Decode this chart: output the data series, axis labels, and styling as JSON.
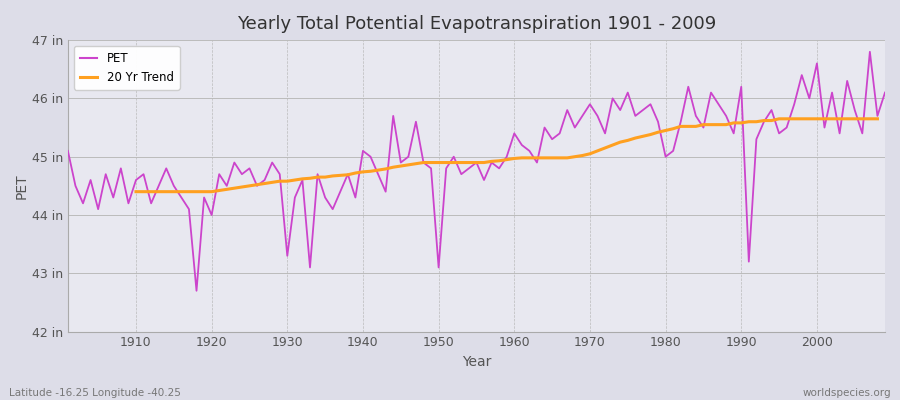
{
  "title": "Yearly Total Potential Evapotranspiration 1901 - 2009",
  "xlabel": "Year",
  "ylabel": "PET",
  "subtitle_left": "Latitude -16.25 Longitude -40.25",
  "subtitle_right": "worldspecies.org",
  "ylim": [
    42,
    47
  ],
  "yticks": [
    42,
    43,
    44,
    45,
    46,
    47
  ],
  "ytick_labels": [
    "42 in",
    "43 in",
    "44 in",
    "45 in",
    "46 in",
    "47 in"
  ],
  "pet_color": "#CC44CC",
  "trend_color": "#FFA020",
  "fig_bg_color": "#DDDDE8",
  "plot_bg_color": "#E8E8F0",
  "years": [
    1901,
    1902,
    1903,
    1904,
    1905,
    1906,
    1907,
    1908,
    1909,
    1910,
    1911,
    1912,
    1913,
    1914,
    1915,
    1916,
    1917,
    1918,
    1919,
    1920,
    1921,
    1922,
    1923,
    1924,
    1925,
    1926,
    1927,
    1928,
    1929,
    1930,
    1931,
    1932,
    1933,
    1934,
    1935,
    1936,
    1937,
    1938,
    1939,
    1940,
    1941,
    1942,
    1943,
    1944,
    1945,
    1946,
    1947,
    1948,
    1949,
    1950,
    1951,
    1952,
    1953,
    1954,
    1955,
    1956,
    1957,
    1958,
    1959,
    1960,
    1961,
    1962,
    1963,
    1964,
    1965,
    1966,
    1967,
    1968,
    1969,
    1970,
    1971,
    1972,
    1973,
    1974,
    1975,
    1976,
    1977,
    1978,
    1979,
    1980,
    1981,
    1982,
    1983,
    1984,
    1985,
    1986,
    1987,
    1988,
    1989,
    1990,
    1991,
    1992,
    1993,
    1994,
    1995,
    1996,
    1997,
    1998,
    1999,
    2000,
    2001,
    2002,
    2003,
    2004,
    2005,
    2006,
    2007,
    2008,
    2009
  ],
  "pet_values": [
    45.1,
    44.5,
    44.2,
    44.6,
    44.1,
    44.7,
    44.3,
    44.8,
    44.2,
    44.6,
    44.7,
    44.2,
    44.5,
    44.8,
    44.5,
    44.3,
    44.1,
    42.7,
    44.3,
    44.0,
    44.7,
    44.5,
    44.9,
    44.7,
    44.8,
    44.5,
    44.6,
    44.9,
    44.7,
    43.3,
    44.3,
    44.6,
    43.1,
    44.7,
    44.3,
    44.1,
    44.4,
    44.7,
    44.3,
    45.1,
    45.0,
    44.7,
    44.4,
    45.7,
    44.9,
    45.0,
    45.6,
    44.9,
    44.8,
    43.1,
    44.8,
    45.0,
    44.7,
    44.8,
    44.9,
    44.6,
    44.9,
    44.8,
    45.0,
    45.4,
    45.2,
    45.1,
    44.9,
    45.5,
    45.3,
    45.4,
    45.8,
    45.5,
    45.7,
    45.9,
    45.7,
    45.4,
    46.0,
    45.8,
    46.1,
    45.7,
    45.8,
    45.9,
    45.6,
    45.0,
    45.1,
    45.6,
    46.2,
    45.7,
    45.5,
    46.1,
    45.9,
    45.7,
    45.4,
    46.2,
    43.2,
    45.3,
    45.6,
    45.8,
    45.4,
    45.5,
    45.9,
    46.4,
    46.0,
    46.6,
    45.5,
    46.1,
    45.4,
    46.3,
    45.8,
    45.4,
    46.8,
    45.7,
    46.1
  ],
  "trend_values": [
    null,
    null,
    null,
    null,
    null,
    null,
    null,
    null,
    null,
    44.4,
    44.4,
    44.4,
    44.4,
    44.4,
    44.4,
    44.4,
    44.4,
    44.4,
    44.4,
    44.4,
    44.42,
    44.44,
    44.46,
    44.48,
    44.5,
    44.52,
    44.54,
    44.56,
    44.58,
    44.58,
    44.6,
    44.62,
    44.63,
    44.65,
    44.65,
    44.67,
    44.68,
    44.69,
    44.72,
    44.74,
    44.75,
    44.77,
    44.79,
    44.82,
    44.84,
    44.86,
    44.88,
    44.9,
    44.9,
    44.9,
    44.9,
    44.9,
    44.9,
    44.9,
    44.9,
    44.9,
    44.92,
    44.93,
    44.95,
    44.97,
    44.98,
    44.98,
    44.98,
    44.98,
    44.98,
    44.98,
    44.98,
    45.0,
    45.02,
    45.05,
    45.1,
    45.15,
    45.2,
    45.25,
    45.28,
    45.32,
    45.35,
    45.38,
    45.42,
    45.45,
    45.48,
    45.52,
    45.52,
    45.52,
    45.55,
    45.55,
    45.55,
    45.55,
    45.58,
    45.58,
    45.6,
    45.6,
    45.62,
    45.62,
    45.65,
    45.65,
    45.65,
    45.65,
    45.65,
    45.65,
    45.65,
    45.65,
    45.65,
    45.65,
    45.65,
    45.65,
    45.65,
    45.65
  ]
}
